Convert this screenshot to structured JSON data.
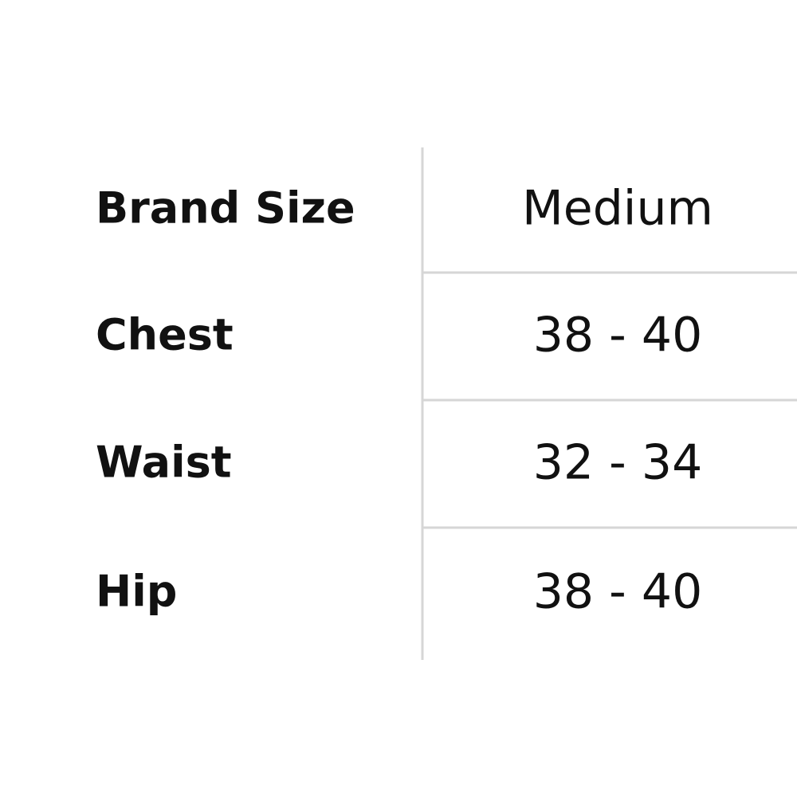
{
  "table": {
    "rows": [
      [
        "Brand Size",
        "Medium"
      ],
      [
        "Chest",
        "38 - 40"
      ],
      [
        "Waist",
        "32 - 34"
      ],
      [
        "Hip",
        "38 - 40"
      ]
    ]
  }
}
